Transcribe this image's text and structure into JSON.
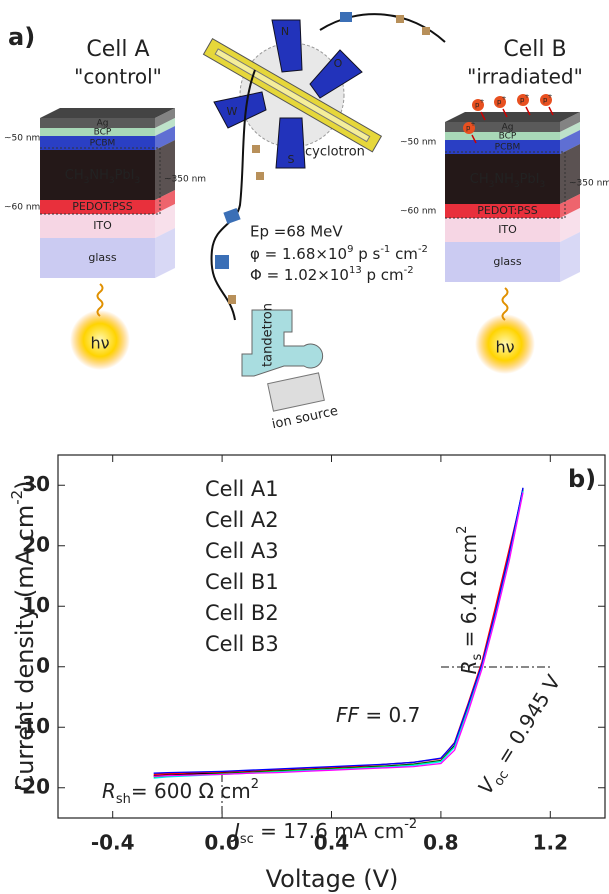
{
  "diagram": {
    "panel_label": "a)",
    "cell_a": {
      "title": "Cell A",
      "subtitle": "\"control\""
    },
    "cell_b": {
      "title": "Cell B",
      "subtitle": "\"irradiated\""
    },
    "layers": [
      "Ag",
      "BCP",
      "PCBM",
      [
        "CH",
        "3",
        "NH",
        "3",
        "PbI",
        "3"
      ],
      "PEDOT:PSS",
      "ITO",
      "glass"
    ],
    "thickness": [
      "~50 nm",
      "~350 nm",
      "~60 nm"
    ],
    "light": "hν",
    "proton": [
      "p",
      "+"
    ],
    "cyclotron": {
      "label": "cyclotron",
      "poles": [
        "N",
        "O",
        "S",
        "W"
      ]
    },
    "beam": {
      "energy": "Ep =68 MeV",
      "flux": [
        "φ = 1.68×10",
        "9",
        " p s",
        "-1",
        " cm",
        "-2"
      ],
      "fluence": [
        "Φ = 1.02×10",
        "13",
        " p cm",
        "-2"
      ]
    },
    "tandetron": "tandetron",
    "ion_source": "ion source"
  },
  "chart_data": {
    "type": "line",
    "panel_label": "b)",
    "x_label": "Voltage (V)",
    "y_label": [
      "Current density (mA cm",
      "-2",
      ")"
    ],
    "x": [
      -0.25,
      -0.2,
      -0.1,
      0,
      0.1,
      0.2,
      0.3,
      0.4,
      0.5,
      0.6,
      0.7,
      0.8,
      0.85,
      0.9,
      0.95,
      1.0,
      1.05,
      1.1
    ],
    "series": [
      {
        "name": "Cell A1",
        "color": "#000000",
        "values": [
          -18.0,
          -17.9,
          -17.7,
          -17.6,
          -17.4,
          -17.2,
          -17.0,
          -16.8,
          -16.6,
          -16.4,
          -16.1,
          -15.5,
          -13.0,
          -6.5,
          0.3,
          9.0,
          18.5,
          29.5
        ]
      },
      {
        "name": "Cell A2",
        "color": "#ff0000",
        "values": [
          -17.8,
          -17.7,
          -17.5,
          -17.4,
          -17.2,
          -17.0,
          -16.8,
          -16.6,
          -16.4,
          -16.1,
          -15.8,
          -15.2,
          -12.5,
          -6.0,
          0.8,
          10.0,
          19.5,
          29.0
        ]
      },
      {
        "name": "Cell A3",
        "color": "#00dd00",
        "values": [
          -18.2,
          -18.1,
          -17.9,
          -17.7,
          -17.5,
          -17.3,
          -17.1,
          -16.9,
          -16.7,
          -16.5,
          -16.2,
          -15.6,
          -13.2,
          -6.8,
          0.0,
          8.6,
          18.0,
          29.2
        ]
      },
      {
        "name": "Cell B1",
        "color": "#0000ff",
        "values": [
          -17.6,
          -17.5,
          -17.4,
          -17.3,
          -17.1,
          -16.9,
          -16.7,
          -16.5,
          -16.3,
          -16.1,
          -15.8,
          -15.1,
          -12.6,
          -6.2,
          0.4,
          9.2,
          18.8,
          29.6
        ]
      },
      {
        "name": "Cell B2",
        "color": "#00e5ee",
        "values": [
          -18.4,
          -18.2,
          -18.0,
          -17.8,
          -17.6,
          -17.4,
          -17.2,
          -17.0,
          -16.8,
          -16.6,
          -16.3,
          -15.7,
          -13.3,
          -7.0,
          -0.2,
          8.4,
          17.8,
          29.0
        ]
      },
      {
        "name": "Cell B3",
        "color": "#ff00ff",
        "values": [
          -18.1,
          -18.0,
          -17.9,
          -17.8,
          -17.6,
          -17.5,
          -17.3,
          -17.1,
          -16.9,
          -16.7,
          -16.5,
          -16.0,
          -13.8,
          -7.4,
          -0.4,
          8.2,
          17.6,
          28.8
        ]
      }
    ],
    "xlim": [
      -0.6,
      1.4
    ],
    "ylim": [
      -25,
      35
    ],
    "xticks": [
      -0.4,
      {
        "value": 0,
        "label": "0.0"
      },
      0.4,
      0.8,
      1.2
    ],
    "yticks": [
      -20,
      -10,
      0,
      10,
      20,
      30
    ],
    "annotations": {
      "rs": [
        "R",
        "s",
        " = 6.4 Ω cm",
        "2"
      ],
      "voc": [
        "V",
        "oc",
        " = 0.945 V"
      ],
      "ff": [
        "FF",
        " = 0.7"
      ],
      "rsh": [
        "R",
        "sh",
        "= 600 Ω cm",
        "2"
      ],
      "jsc": [
        "J",
        "sc",
        " = 17.6 mA cm",
        "-2"
      ]
    }
  }
}
